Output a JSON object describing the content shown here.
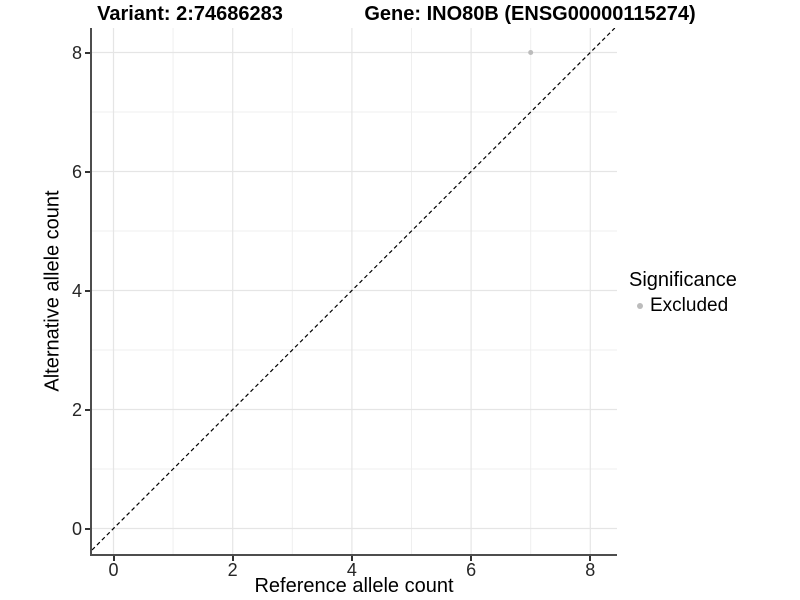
{
  "header": {
    "variant_title": "Variant: 2:74686283",
    "gene_title": "Gene: INO80B (ENSG00000115274)"
  },
  "axes": {
    "x_label": "Reference allele count",
    "y_label": "Alternative allele count"
  },
  "legend": {
    "title": "Significance",
    "items": [
      {
        "label": "Excluded",
        "color": "#bcbcbc"
      }
    ]
  },
  "chart_data": {
    "type": "scatter",
    "title_left": "Variant: 2:74686283",
    "title_right": "Gene: INO80B (ENSG00000115274)",
    "xlabel": "Reference allele count",
    "ylabel": "Alternative allele count",
    "x_ticks": [
      0,
      2,
      4,
      6,
      8
    ],
    "y_ticks": [
      0,
      2,
      4,
      6,
      8
    ],
    "x_minor_ticks": [
      1,
      3,
      5,
      7
    ],
    "y_minor_ticks": [
      1,
      3,
      5,
      7
    ],
    "xlim": [
      -0.36,
      8.45
    ],
    "ylim": [
      -0.43,
      8.41
    ],
    "grid": "major+minor",
    "legend_position": "right",
    "series": [
      {
        "name": "Excluded",
        "color": "#bcbcbc",
        "point_radius": 2.5,
        "points": [
          {
            "x": 7,
            "y": 8
          }
        ]
      }
    ],
    "reference_line": {
      "equation": "y = x",
      "style": "dashed",
      "color": "#000000"
    },
    "colors": {
      "grid_major": "#e5e5e5",
      "grid_minor": "#efefef",
      "axis_line": "#4d4d4d",
      "tick_text": "#262626"
    }
  }
}
